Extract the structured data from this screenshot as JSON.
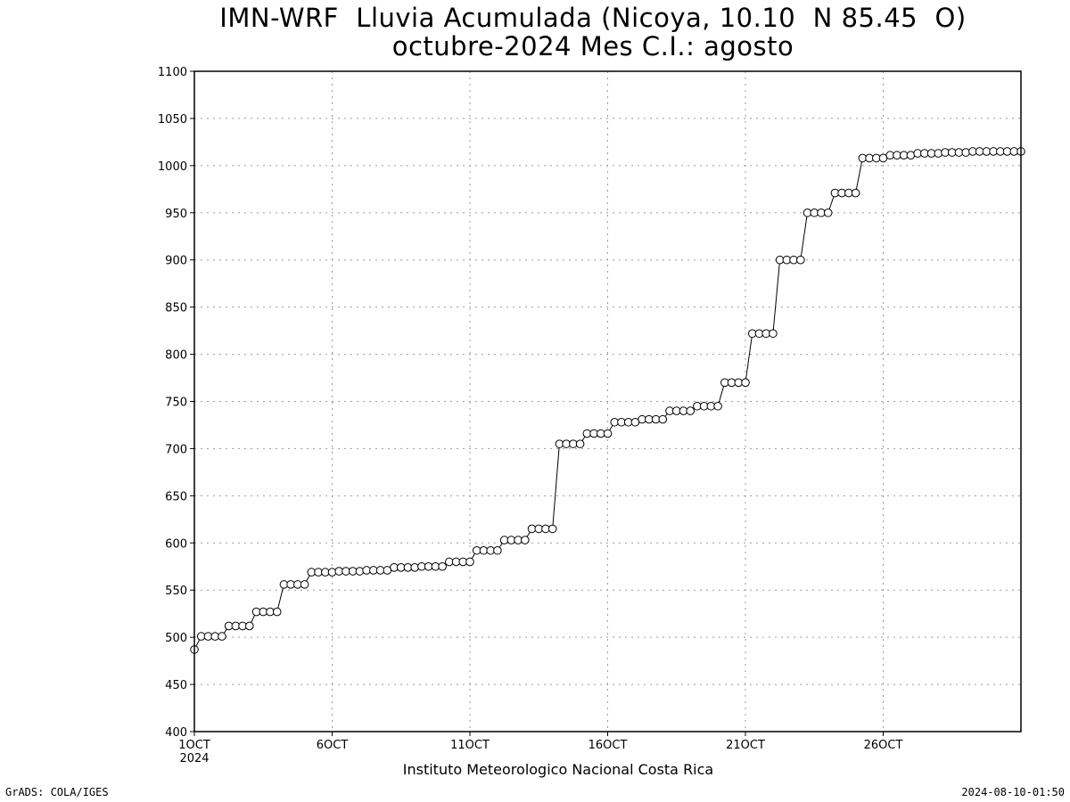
{
  "chart_data": {
    "type": "line",
    "title_line1": "IMN-WRF  Lluvia Acumulada (Nicoya, 10.10  N 85.45  O)",
    "title_line2": "octubre-2024 Mes C.I.: agosto",
    "xlabel": "Instituto Meteorologico Nacional Costa Rica",
    "ylabel": "",
    "ylim": [
      400,
      1100
    ],
    "xlim": [
      1,
      31
    ],
    "y_ticks": [
      400,
      450,
      500,
      550,
      600,
      650,
      700,
      750,
      800,
      850,
      900,
      950,
      1000,
      1050,
      1100
    ],
    "x_ticks": [
      {
        "day": 1,
        "label": "1OCT"
      },
      {
        "day": 6,
        "label": "6OCT"
      },
      {
        "day": 11,
        "label": "11OCT"
      },
      {
        "day": 16,
        "label": "16OCT"
      },
      {
        "day": 21,
        "label": "21OCT"
      },
      {
        "day": 26,
        "label": "26OCT"
      }
    ],
    "x_year_label": "2024",
    "grid": true,
    "series": [
      {
        "marker": "open-circle",
        "color": "#000000",
        "x": [
          1,
          1.25,
          1.5,
          1.75,
          2,
          2.25,
          2.5,
          2.75,
          3,
          3.25,
          3.5,
          3.75,
          4,
          4.25,
          4.5,
          4.75,
          5,
          5.25,
          5.5,
          5.75,
          6,
          6.25,
          6.5,
          6.75,
          7,
          7.25,
          7.5,
          7.75,
          8,
          8.25,
          8.5,
          8.75,
          9,
          9.25,
          9.5,
          9.75,
          10,
          10.25,
          10.5,
          10.75,
          11,
          11.25,
          11.5,
          11.75,
          12,
          12.25,
          12.5,
          12.75,
          13,
          13.25,
          13.5,
          13.75,
          14,
          14.25,
          14.5,
          14.75,
          15,
          15.25,
          15.5,
          15.75,
          16,
          16.25,
          16.5,
          16.75,
          17,
          17.25,
          17.5,
          17.75,
          18,
          18.25,
          18.5,
          18.75,
          19,
          19.25,
          19.5,
          19.75,
          20,
          20.25,
          20.5,
          20.75,
          21,
          21.25,
          21.5,
          21.75,
          22,
          22.25,
          22.5,
          22.75,
          23,
          23.25,
          23.5,
          23.75,
          24,
          24.25,
          24.5,
          24.75,
          25,
          25.25,
          25.5,
          25.75,
          26,
          26.25,
          26.5,
          26.75,
          27,
          27.25,
          27.5,
          27.75,
          28,
          28.25,
          28.5,
          28.75,
          29,
          29.25,
          29.5,
          29.75,
          30,
          30.25,
          30.5,
          30.75,
          31
        ],
        "y": [
          487,
          501,
          501,
          501,
          501,
          512,
          512,
          512,
          512,
          527,
          527,
          527,
          527,
          556,
          556,
          556,
          556,
          569,
          569,
          569,
          569,
          570,
          570,
          570,
          570,
          571,
          571,
          571,
          571,
          574,
          574,
          574,
          574,
          575,
          575,
          575,
          575,
          580,
          580,
          580,
          580,
          592,
          592,
          592,
          592,
          603,
          603,
          603,
          603,
          615,
          615,
          615,
          615,
          705,
          705,
          705,
          705,
          716,
          716,
          716,
          716,
          728,
          728,
          728,
          728,
          731,
          731,
          731,
          731,
          740,
          740,
          740,
          740,
          745,
          745,
          745,
          745,
          770,
          770,
          770,
          770,
          822,
          822,
          822,
          822,
          900,
          900,
          900,
          900,
          950,
          950,
          950,
          950,
          971,
          971,
          971,
          971,
          1008,
          1008,
          1008,
          1008,
          1011,
          1011,
          1011,
          1011,
          1013,
          1013,
          1013,
          1013,
          1014,
          1014,
          1014,
          1014,
          1015,
          1015,
          1015,
          1015,
          1015,
          1015,
          1015,
          1015
        ]
      }
    ]
  },
  "footer": {
    "credit": "GrADS: COLA/IGES",
    "timestamp": "2024-08-10-01:50"
  }
}
